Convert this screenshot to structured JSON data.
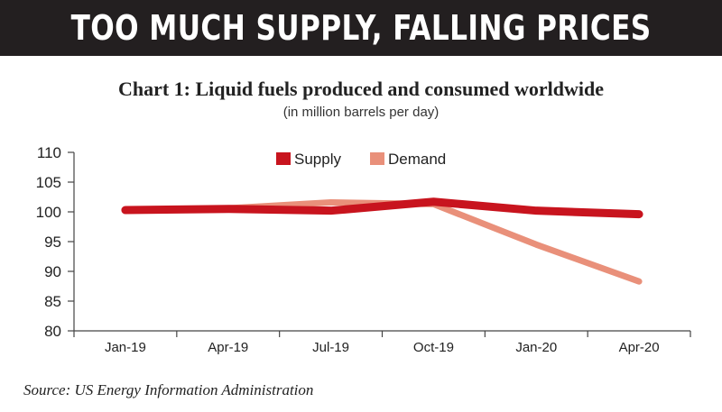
{
  "header": {
    "banner_title": "TOO MUCH SUPPLY, FALLING PRICES"
  },
  "colors": {
    "banner_bg": "#231f20",
    "supply": "#c8141e",
    "demand": "#e9907a"
  },
  "source": "Source: US Energy Information Administration",
  "chart_data": {
    "type": "line",
    "title": "Chart 1: Liquid fuels produced  and consumed worldwide",
    "subtitle": "(in million barrels per day)",
    "categories": [
      "Jan-19",
      "Apr-19",
      "Jul-19",
      "Oct-19",
      "Jan-20",
      "Apr-20"
    ],
    "series": [
      {
        "name": "Supply",
        "values": [
          100.3,
          100.5,
          100.2,
          101.7,
          100.2,
          99.6
        ]
      },
      {
        "name": "Demand",
        "values": [
          100.3,
          100.6,
          101.6,
          101.3,
          94.5,
          88.3
        ]
      }
    ],
    "ylim": [
      80,
      110
    ],
    "yticks": [
      "80",
      "85",
      "90",
      "95",
      "100",
      "105",
      "110"
    ],
    "legend_position": "top-center",
    "grid": false
  }
}
